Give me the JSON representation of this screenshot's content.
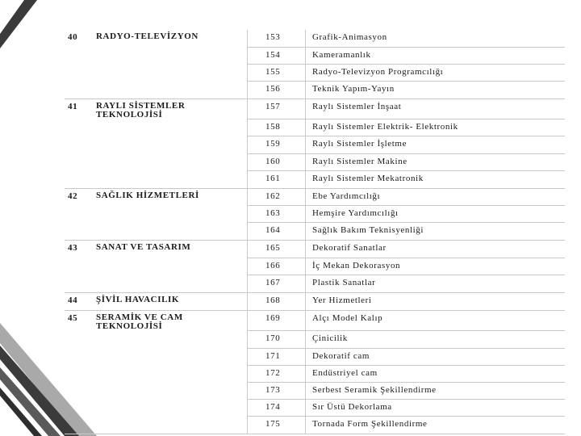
{
  "table": {
    "rows": [
      {
        "no": "40",
        "area": "RADYO-TELEVİZYON",
        "code": "153",
        "name": "Grafik-Animasyon"
      },
      {
        "no": "",
        "area": "",
        "code": "154",
        "name": "Kameramanlık"
      },
      {
        "no": "",
        "area": "",
        "code": "155",
        "name": "Radyo-Televizyon  Programcılığı"
      },
      {
        "no": "",
        "area": "",
        "code": "156",
        "name": "Teknik  Yapım-Yayın"
      },
      {
        "no": "41",
        "area": "RAYLI  SİSTEMLER TEKNOLOJİSİ",
        "code": "157",
        "name": "Raylı  Sistemler  İnşaat"
      },
      {
        "no": "",
        "area": "",
        "code": "158",
        "name": "Raylı  Sistemler  Elektrik-  Elektronik"
      },
      {
        "no": "",
        "area": "",
        "code": "159",
        "name": "Raylı  Sistemler  İşletme"
      },
      {
        "no": "",
        "area": "",
        "code": "160",
        "name": "Raylı  Sistemler  Makine"
      },
      {
        "no": "",
        "area": "",
        "code": "161",
        "name": "Raylı  Sistemler  Mekatronik"
      },
      {
        "no": "42",
        "area": "SAĞLIK  HİZMETLERİ",
        "code": "162",
        "name": "Ebe  Yardımcılığı"
      },
      {
        "no": "",
        "area": "",
        "code": "163",
        "name": "Hemşire  Yardımcılığı"
      },
      {
        "no": "",
        "area": "",
        "code": "164",
        "name": "Sağlık  Bakım  Teknisyenliği"
      },
      {
        "no": "43",
        "area": "SANAT  VE  TASARIM",
        "code": "165",
        "name": "Dekoratif  Sanatlar"
      },
      {
        "no": "",
        "area": "",
        "code": "166",
        "name": "İç Mekan  Dekorasyon"
      },
      {
        "no": "",
        "area": "",
        "code": "167",
        "name": "Plastik  Sanatlar"
      },
      {
        "no": "44",
        "area": "ŞİVİL  HAVACILIK",
        "code": "168",
        "name": "Yer  Hizmetleri"
      },
      {
        "no": "45",
        "area": "SERAMİK  VE  CAM TEKNOLOJİSİ",
        "code": "169",
        "name": "Alçı  Model  Kalıp"
      },
      {
        "no": "",
        "area": "",
        "code": "170",
        "name": "Çinicilik"
      },
      {
        "no": "",
        "area": "",
        "code": "171",
        "name": "Dekoratif  cam"
      },
      {
        "no": "",
        "area": "",
        "code": "172",
        "name": "Endüstriyel  cam"
      },
      {
        "no": "",
        "area": "",
        "code": "173",
        "name": "Serbest  Seramik  Şekillendirme"
      },
      {
        "no": "",
        "area": "",
        "code": "174",
        "name": "Sır  Üstü  Dekorlama"
      },
      {
        "no": "",
        "area": "",
        "code": "175",
        "name": "Tornada  Form  Şekillendirme"
      }
    ]
  },
  "colors": {
    "deco_dark": "#3b3b3b",
    "deco_mid": "#5a5a5a",
    "deco_light": "#a9a9a9",
    "rule": "#c9c9c9"
  }
}
